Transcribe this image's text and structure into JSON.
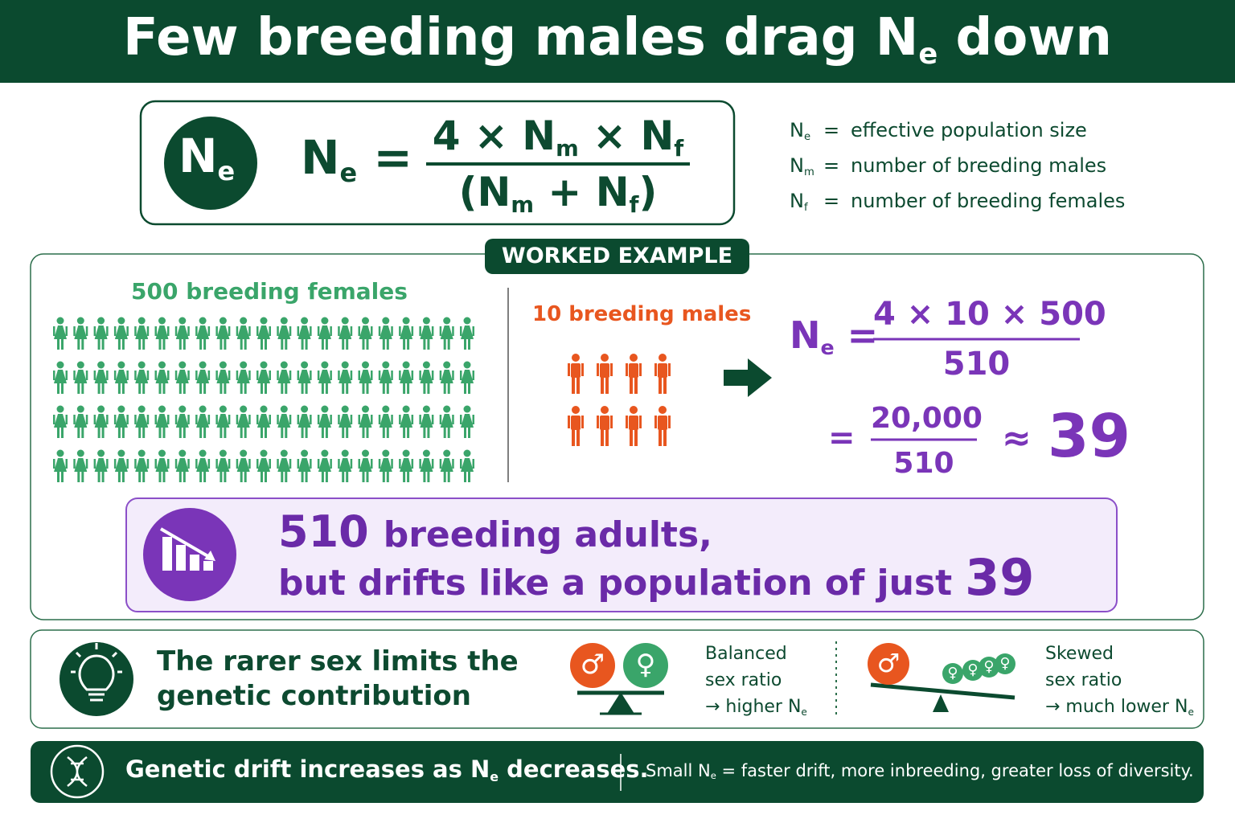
{
  "header": {
    "title": [
      "Few breeding males drag N",
      "e",
      " down"
    ]
  },
  "formula": {
    "badge": [
      "N",
      "e"
    ],
    "lhs": [
      "N",
      "e",
      " ="
    ],
    "numerator": [
      "4 × N",
      "m",
      " × N",
      "f"
    ],
    "denominator": [
      "(N",
      "m",
      " + N",
      "f",
      ")"
    ]
  },
  "legend": [
    {
      "symbol": [
        "N",
        "e"
      ],
      "eq": "=",
      "text": "effective population size"
    },
    {
      "symbol": [
        "N",
        "m"
      ],
      "eq": "=",
      "text": "number of breeding males"
    },
    {
      "symbol": [
        "N",
        "f"
      ],
      "eq": "=",
      "text": "number of breeding females"
    }
  ],
  "example": {
    "badge": "WORKED EXAMPLE",
    "females_label": "500 breeding females",
    "males_label": "10 breeding males",
    "calc": {
      "lhs": [
        "N",
        "e",
        " ="
      ],
      "numerator": "4 × 10 × 500",
      "denominator": "510",
      "eq": "=",
      "numerator2": "20,000",
      "denominator2": "510",
      "approx": "≈",
      "result": "39"
    }
  },
  "callout": {
    "number_adults": "510",
    "line1": "breeding adults,",
    "line2": "but drifts like a population of just",
    "number_effective": "39"
  },
  "insight": {
    "lines": [
      "The rarer sex limits the",
      "genetic contribution"
    ],
    "male_symbol": "♂",
    "female_symbol": "♀",
    "balanced": {
      "lines": [
        "Balanced",
        "sex ratio"
      ],
      "note": [
        "→ higher N",
        "e"
      ]
    },
    "skewed": {
      "lines": [
        "Skewed",
        "sex ratio"
      ],
      "note": [
        "→ much lower N",
        "e"
      ]
    }
  },
  "footer": {
    "main": [
      "Genetic drift increases as N",
      "e",
      " decreases."
    ],
    "note": [
      "Small N",
      "e",
      " = faster drift, more inbreeding, greater loss of diversity."
    ]
  }
}
